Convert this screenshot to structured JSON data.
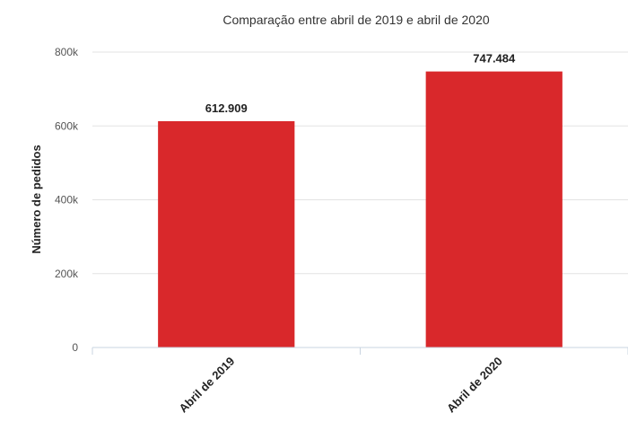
{
  "chart_data": {
    "type": "bar",
    "title": "Comparação entre abril de 2019 e abril de 2020",
    "xlabel": "",
    "ylabel": "Número de pedidos",
    "categories": [
      "Abril de 2019",
      "Abril de 2020"
    ],
    "values": [
      612909,
      747484
    ],
    "data_labels": [
      "612.909",
      "747.484"
    ],
    "ylim": [
      0,
      800000
    ],
    "yticks": [
      0,
      200000,
      400000,
      600000,
      800000
    ],
    "ytick_labels": [
      "0",
      "200k",
      "400k",
      "600k",
      "800k"
    ],
    "grid": true,
    "legend": "none",
    "bar_color": "#d9282b"
  }
}
